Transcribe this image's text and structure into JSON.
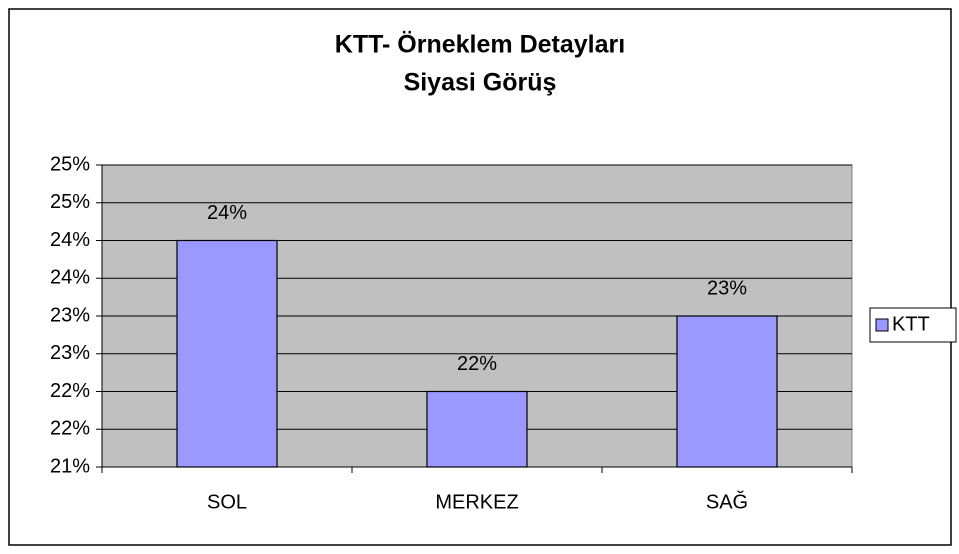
{
  "chart_data": {
    "type": "bar",
    "title": "KTT- Örneklem Detayları",
    "subtitle": "Siyasi Görüş",
    "categories": [
      "SOL",
      "MERKEZ",
      "SAĞ"
    ],
    "series": [
      {
        "name": "KTT",
        "color": "#9999ff",
        "values": [
          24,
          22,
          23
        ],
        "value_labels": [
          "24%",
          "22%",
          "23%"
        ]
      }
    ],
    "ylim": [
      21,
      25
    ],
    "yticks": [
      {
        "value": 21,
        "label": "21%"
      },
      {
        "value": 21.5,
        "label": "22%"
      },
      {
        "value": 22,
        "label": "22%"
      },
      {
        "value": 22.5,
        "label": "23%"
      },
      {
        "value": 23,
        "label": "23%"
      },
      {
        "value": 23.5,
        "label": "24%"
      },
      {
        "value": 24,
        "label": "24%"
      },
      {
        "value": 24.5,
        "label": "25%"
      },
      {
        "value": 25,
        "label": "25%"
      }
    ],
    "grid": true,
    "legend": "right"
  }
}
